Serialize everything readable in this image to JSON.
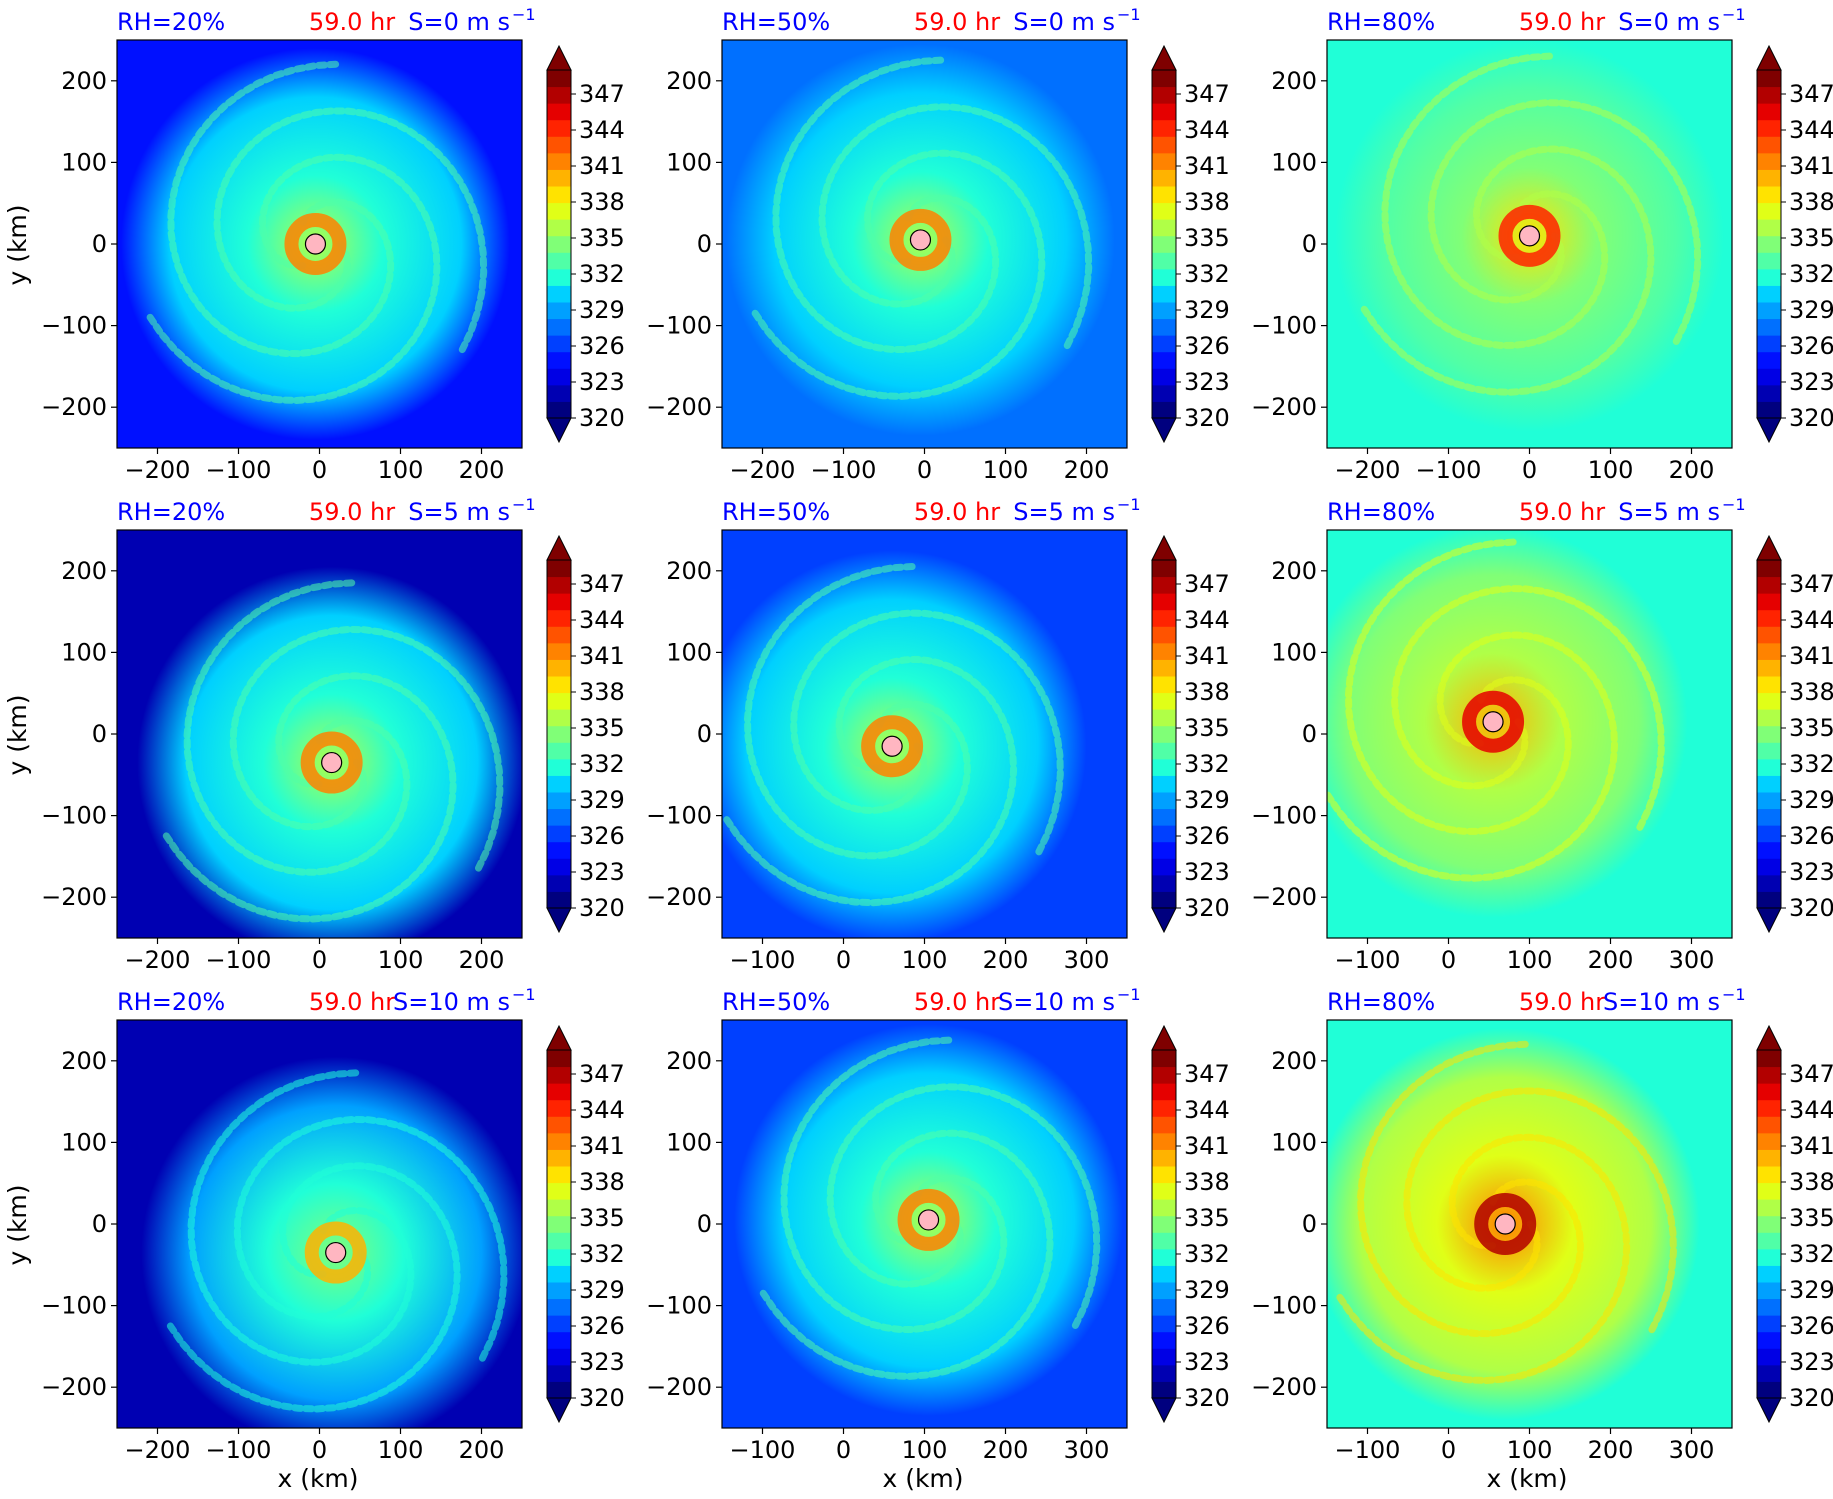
{
  "figure": {
    "colors": {
      "rh_text": "#0000ff",
      "time_text": "#ff0000",
      "shear_text": "#0000ff",
      "center_marker": "#ffb6c1",
      "frame": "#000000"
    },
    "colormap": [
      "#00007f",
      "#0000b2",
      "#0000e5",
      "#0010ff",
      "#0040ff",
      "#0070ff",
      "#00a0ff",
      "#00d0ff",
      "#20ffd7",
      "#50ffa7",
      "#80ff77",
      "#b0ff47",
      "#e0ff17",
      "#ffe300",
      "#ffb300",
      "#ff8300",
      "#ff5300",
      "#ff2300",
      "#e50000",
      "#b20000",
      "#7f0000"
    ],
    "common": {
      "xlabel": "x (km)",
      "ylabel": "y (km)",
      "time_label": "59.0 hr",
      "colorbar_ticks": [
        "347",
        "344",
        "341",
        "338",
        "335",
        "332",
        "329",
        "326",
        "323",
        "320"
      ],
      "colorbar_range": [
        320,
        349
      ]
    }
  },
  "chart_data": [
    {
      "type": "heatmap",
      "rh_label": "RH=20%",
      "shear_label": "S=0 m s",
      "xticks": [
        "−200",
        "−100",
        "0",
        "100",
        "200"
      ],
      "yticks": [
        "200",
        "100",
        "0",
        "−100",
        "−200"
      ],
      "center_km": [
        -5,
        0
      ],
      "background_K": 324,
      "field_K": 330
    },
    {
      "type": "heatmap",
      "rh_label": "RH=50%",
      "shear_label": "S=0 m s",
      "xticks": [
        "−200",
        "−100",
        "0",
        "100",
        "200"
      ],
      "yticks": [
        "200",
        "100",
        "0",
        "−100",
        "−200"
      ],
      "center_km": [
        -5,
        5
      ],
      "background_K": 327,
      "field_K": 330
    },
    {
      "type": "heatmap",
      "rh_label": "RH=80%",
      "shear_label": "S=0 m s",
      "xticks": [
        "−200",
        "−100",
        "0",
        "100",
        "200"
      ],
      "yticks": [
        "200",
        "100",
        "0",
        "−100",
        "−200"
      ],
      "center_km": [
        0,
        10
      ],
      "background_K": 332,
      "field_K": 333
    },
    {
      "type": "heatmap",
      "rh_label": "RH=20%",
      "shear_label": "S=5 m s",
      "xticks": [
        "−200",
        "−100",
        "0",
        "100",
        "200"
      ],
      "yticks": [
        "200",
        "100",
        "0",
        "−100",
        "−200"
      ],
      "center_km": [
        15,
        -35
      ],
      "background_K": 321,
      "field_K": 330
    },
    {
      "type": "heatmap",
      "rh_label": "RH=50%",
      "shear_label": "S=5 m s",
      "xticks": [
        "−100",
        "0",
        "100",
        "200",
        "300"
      ],
      "yticks": [
        "200",
        "100",
        "0",
        "−100",
        "−200"
      ],
      "center_km": [
        60,
        -15
      ],
      "background_K": 326,
      "field_K": 330
    },
    {
      "type": "heatmap",
      "rh_label": "RH=80%",
      "shear_label": "S=5 m s",
      "xticks": [
        "−100",
        "0",
        "100",
        "200",
        "300"
      ],
      "yticks": [
        "200",
        "100",
        "0",
        "−100",
        "−200"
      ],
      "center_km": [
        55,
        15
      ],
      "background_K": 332,
      "field_K": 334
    },
    {
      "type": "heatmap",
      "rh_label": "RH=20%",
      "shear_label": "S=10 m s",
      "xticks": [
        "−200",
        "−100",
        "0",
        "100",
        "200"
      ],
      "yticks": [
        "200",
        "100",
        "0",
        "−100",
        "−200"
      ],
      "center_km": [
        20,
        -35
      ],
      "background_K": 321,
      "field_K": 329
    },
    {
      "type": "heatmap",
      "rh_label": "RH=50%",
      "shear_label": "S=10 m s",
      "xticks": [
        "−100",
        "0",
        "100",
        "200",
        "300"
      ],
      "yticks": [
        "200",
        "100",
        "0",
        "−100",
        "−200"
      ],
      "center_km": [
        105,
        5
      ],
      "background_K": 326,
      "field_K": 330
    },
    {
      "type": "heatmap",
      "rh_label": "RH=80%",
      "shear_label": "S=10 m s",
      "xticks": [
        "−100",
        "0",
        "100",
        "200",
        "300"
      ],
      "yticks": [
        "200",
        "100",
        "0",
        "−100",
        "−200"
      ],
      "center_km": [
        70,
        0
      ],
      "background_K": 332,
      "field_K": 336
    }
  ]
}
